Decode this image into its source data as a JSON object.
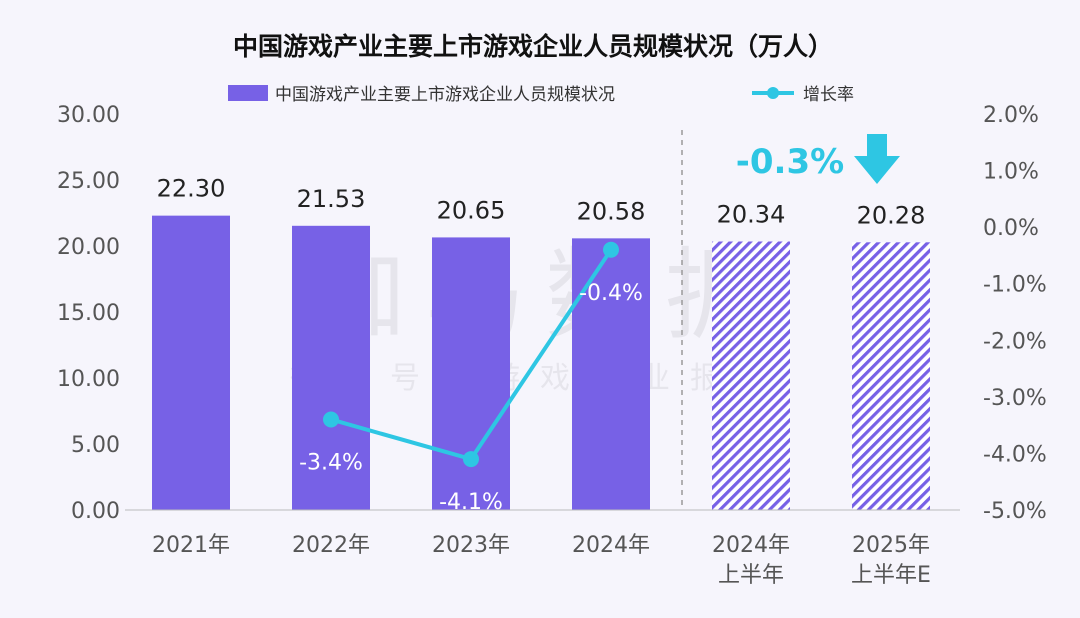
{
  "watermark": {
    "brand": "伽马数据",
    "subline": "微信号：游戏产业报告"
  },
  "callout": {
    "value": "-0.3%",
    "arrow_icon": "down-arrow-icon",
    "color": "#2ec6e3"
  },
  "colors": {
    "bar": "#7761e6",
    "bar_hatch_line": "#7761e6",
    "line": "#2ec6e3",
    "divider": "#9a9a9a"
  },
  "chart_data": {
    "type": "bar",
    "title": "中国游戏产业主要上市游戏企业人员规模状况（万人）",
    "categories": [
      [
        "2021年"
      ],
      [
        "2022年"
      ],
      [
        "2023年"
      ],
      [
        "2024年"
      ],
      [
        "2024年",
        "上半年"
      ],
      [
        "2025年",
        "上半年E"
      ]
    ],
    "series": [
      {
        "name": "中国游戏产业主要上市游戏企业人员规模状况",
        "type": "bar",
        "axis": "left",
        "values": [
          22.3,
          21.53,
          20.65,
          20.58,
          20.34,
          20.28
        ],
        "labels": [
          "22.30",
          "21.53",
          "20.65",
          "20.58",
          "20.34",
          "20.28"
        ],
        "hatched": [
          false,
          false,
          false,
          false,
          true,
          true
        ]
      },
      {
        "name": "增长率",
        "type": "line",
        "axis": "right",
        "points": [
          {
            "category_index": 1,
            "value": -3.4,
            "label": "-3.4%"
          },
          {
            "category_index": 2,
            "value": -4.1,
            "label": "-4.1%"
          },
          {
            "category_index": 3,
            "value": -0.4,
            "label": "-0.4%"
          }
        ]
      }
    ],
    "y_left": {
      "min": 0,
      "max": 30,
      "ticks": [
        "0.00",
        "5.00",
        "10.00",
        "15.00",
        "20.00",
        "25.00",
        "30.00"
      ]
    },
    "y_right": {
      "min": -5,
      "max": 2,
      "ticks": [
        "-5.0%",
        "-4.0%",
        "-3.0%",
        "-2.0%",
        "-1.0%",
        "0.0%",
        "1.0%",
        "2.0%"
      ]
    },
    "legend_position": "top-center",
    "grid": false
  }
}
